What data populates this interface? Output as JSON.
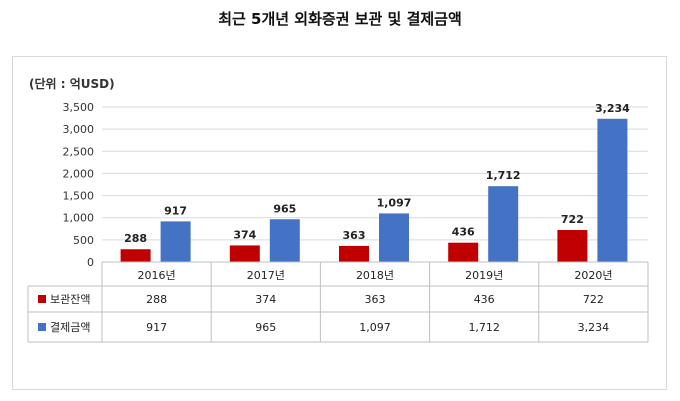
{
  "title": "최근 5개년 외화증권 보관 및 결제금액",
  "unit_label": "(단위 : 억USD)",
  "chart_data": {
    "type": "bar",
    "categories": [
      "2016년",
      "2017년",
      "2018년",
      "2019년",
      "2020년"
    ],
    "series": [
      {
        "name": "보관잔액",
        "color": "#c00000",
        "values": [
          288,
          374,
          363,
          436,
          722
        ],
        "labels": [
          "288",
          "374",
          "363",
          "436",
          "722"
        ]
      },
      {
        "name": "결제금액",
        "color": "#4472c4",
        "values": [
          917,
          965,
          1097,
          1712,
          3234
        ],
        "labels": [
          "917",
          "965",
          "1,097",
          "1,712",
          "3,234"
        ]
      }
    ],
    "ylim": [
      0,
      3500
    ],
    "yticks": [
      0,
      500,
      1000,
      1500,
      2000,
      2500,
      3000,
      3500
    ],
    "ytick_labels": [
      "0",
      "500",
      "1,000",
      "1,500",
      "2,000",
      "2,500",
      "3,000",
      "3,500"
    ],
    "grid": true,
    "legend": "data-table"
  }
}
